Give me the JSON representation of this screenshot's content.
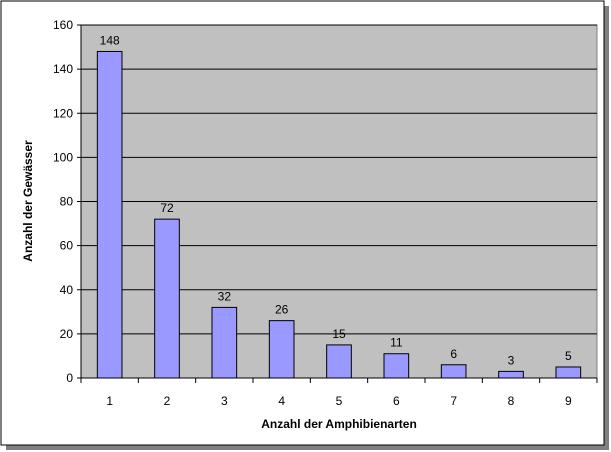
{
  "chart_data": {
    "type": "bar",
    "categories": [
      "1",
      "2",
      "3",
      "4",
      "5",
      "6",
      "7",
      "8",
      "9"
    ],
    "values": [
      148,
      72,
      32,
      26,
      15,
      11,
      6,
      3,
      5
    ],
    "data_labels": [
      "148",
      "72",
      "32",
      "26",
      "15",
      "11",
      "6",
      "3",
      "5"
    ],
    "y_ticks": [
      "0",
      "20",
      "40",
      "60",
      "80",
      "100",
      "120",
      "140",
      "160"
    ],
    "xlabel": "Anzahl der Amphibienarten",
    "ylabel": "Anzahl der Gewässer",
    "ylim": [
      0,
      160
    ],
    "grid": true,
    "legend": "none",
    "colors": {
      "plot_background": "#c0c0c0",
      "bar_fill": "#9999ff",
      "bar_stroke": "#000000",
      "gridline": "#000000",
      "frame_shadow": "#808080"
    }
  }
}
